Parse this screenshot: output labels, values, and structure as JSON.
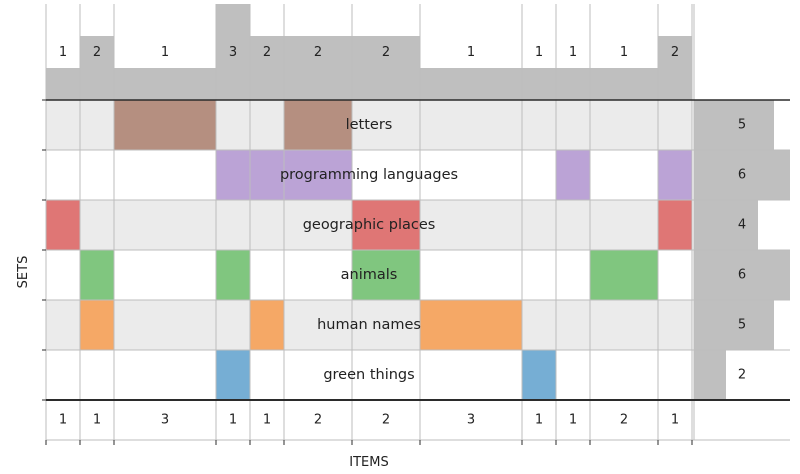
{
  "chart_data": {
    "type": "heatmap",
    "xlabel": "ITEMS",
    "ylabel": "SETS",
    "sets": [
      {
        "name": "letters",
        "cardinality": 5,
        "color": "#b58f80",
        "row_shade": true
      },
      {
        "name": "programming languages",
        "cardinality": 6,
        "color": "#bba3d6",
        "row_shade": false
      },
      {
        "name": "geographic places",
        "cardinality": 4,
        "color": "#df7675",
        "row_shade": true
      },
      {
        "name": "animals",
        "cardinality": 6,
        "color": "#80c67f",
        "row_shade": false
      },
      {
        "name": "human names",
        "cardinality": 5,
        "color": "#f5a866",
        "row_shade": true
      },
      {
        "name": "green things",
        "cardinality": 2,
        "color": "#76aed4",
        "row_shade": false
      }
    ],
    "set_size_max": 6,
    "items": [
      {
        "top": 1,
        "bottom": 1,
        "weight": 1,
        "in": [
          2
        ]
      },
      {
        "top": 2,
        "bottom": 1,
        "weight": 1,
        "in": [
          3,
          4
        ]
      },
      {
        "top": 1,
        "bottom": 3,
        "weight": 3,
        "in": [
          0
        ]
      },
      {
        "top": 3,
        "bottom": 1,
        "weight": 1,
        "in": [
          1,
          3,
          5
        ]
      },
      {
        "top": 2,
        "bottom": 1,
        "weight": 1,
        "in": [
          1,
          4
        ]
      },
      {
        "top": 2,
        "bottom": 2,
        "weight": 2,
        "in": [
          0,
          1
        ]
      },
      {
        "top": 2,
        "bottom": 2,
        "weight": 2,
        "in": [
          2,
          3
        ]
      },
      {
        "top": 1,
        "bottom": 3,
        "weight": 3,
        "in": [
          4
        ]
      },
      {
        "top": 1,
        "bottom": 1,
        "weight": 1,
        "in": [
          5
        ]
      },
      {
        "top": 1,
        "bottom": 1,
        "weight": 1,
        "in": [
          1
        ]
      },
      {
        "top": 1,
        "bottom": 2,
        "weight": 2,
        "in": [
          3
        ]
      },
      {
        "top": 2,
        "bottom": 1,
        "weight": 1,
        "in": [
          1,
          2
        ]
      }
    ],
    "top_max": 3,
    "colors": {
      "bar": "#bfbfbf",
      "shade": "#ebebeb",
      "grid": "#bdbdbd",
      "border": "#2b2b2b"
    }
  }
}
